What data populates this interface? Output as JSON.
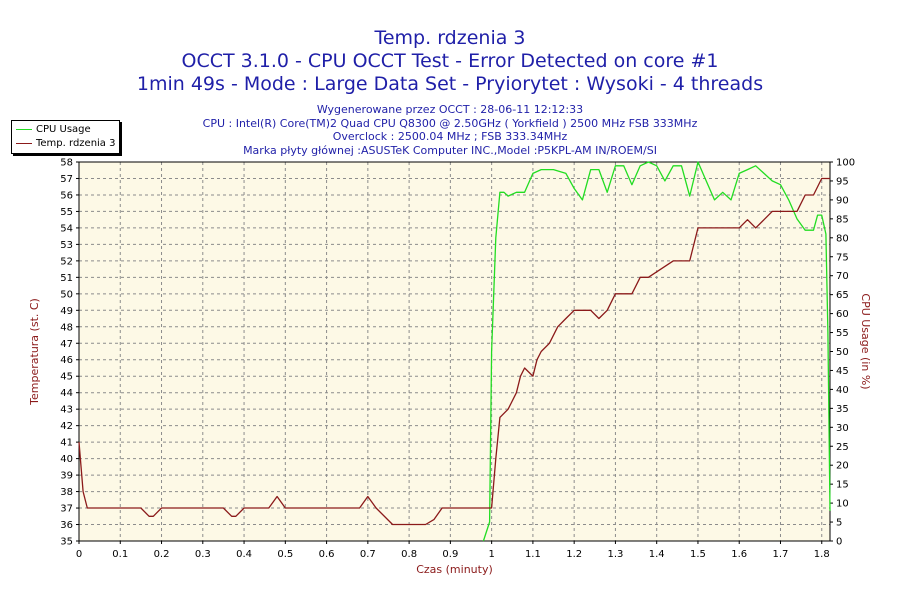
{
  "header": {
    "title1": "Temp. rdzenia 3",
    "title2": "OCCT 3.1.0 - CPU OCCT Test - Error Detected on core #1",
    "title3": "1min 49s - Mode : Large Data Set - Pryiorytet : Wysoki - 4 threads",
    "info": [
      "Wygenerowane przez OCCT : 28-06-11 12:12:33",
      "CPU : Intel(R) Core(TM)2 Quad CPU Q8300 @ 2.50GHz ( Yorkfield ) 2500 MHz FSB 333MHz",
      "Overclock : 2500.04 MHz ; FSB 333.34MHz",
      "Marka płyty głównej :ASUSTeK Computer INC.,Model :P5KPL-AM IN/ROEM/SI"
    ]
  },
  "colors": {
    "title": "#1f1fa8",
    "temp": "#8b1a1a",
    "cpu": "#22dd22",
    "plot_bg": "#fdf9e6",
    "grid": "#8c8c8c"
  },
  "chart_data": {
    "type": "line",
    "xlabel": "Czas (minuty)",
    "ylabel_left": "Temperatura (st. C)",
    "ylabel_right": "CPU Usage (in %)",
    "xlim": [
      0,
      1.82
    ],
    "ylim_left": [
      35,
      58
    ],
    "ylim_right": [
      0,
      100
    ],
    "x_ticks": [
      0,
      0.1,
      0.2,
      0.3,
      0.4,
      0.5,
      0.6,
      0.7,
      0.8,
      0.9,
      1,
      1.1,
      1.2,
      1.3,
      1.4,
      1.5,
      1.6,
      1.7,
      1.8
    ],
    "y_ticks_left": [
      35,
      36,
      37,
      38,
      39,
      40,
      41,
      42,
      43,
      44,
      45,
      46,
      47,
      48,
      49,
      50,
      51,
      52,
      53,
      54,
      55,
      56,
      57,
      58
    ],
    "y_ticks_right": [
      0,
      5,
      10,
      15,
      20,
      25,
      30,
      35,
      40,
      45,
      50,
      55,
      60,
      65,
      70,
      75,
      80,
      85,
      90,
      95,
      100
    ],
    "grid": true,
    "legend_position": "top-left",
    "series": [
      {
        "name": "CPU Usage",
        "axis": "right",
        "x": [
          0.98,
          0.995,
          1.0,
          1.01,
          1.02,
          1.03,
          1.04,
          1.06,
          1.08,
          1.1,
          1.12,
          1.15,
          1.18,
          1.2,
          1.22,
          1.24,
          1.26,
          1.28,
          1.3,
          1.32,
          1.34,
          1.36,
          1.38,
          1.4,
          1.42,
          1.44,
          1.46,
          1.48,
          1.5,
          1.52,
          1.54,
          1.56,
          1.58,
          1.6,
          1.62,
          1.64,
          1.66,
          1.68,
          1.7,
          1.72,
          1.74,
          1.76,
          1.78,
          1.79,
          1.8,
          1.81,
          1.815,
          1.82
        ],
        "y": [
          0,
          5,
          50,
          80,
          92,
          92,
          91,
          92,
          92,
          97,
          98,
          98,
          97,
          93,
          90,
          98,
          98,
          92,
          99,
          99,
          94,
          99,
          100,
          99,
          95,
          99,
          99,
          91,
          100,
          95,
          90,
          92,
          90,
          97,
          98,
          99,
          97,
          95,
          94,
          90,
          85,
          82,
          82,
          86,
          86,
          81,
          55,
          8
        ]
      },
      {
        "name": "Temp. rdzenia 3",
        "axis": "left",
        "x": [
          0,
          0.01,
          0.02,
          0.03,
          0.15,
          0.17,
          0.18,
          0.2,
          0.35,
          0.37,
          0.38,
          0.4,
          0.46,
          0.48,
          0.5,
          0.68,
          0.7,
          0.72,
          0.76,
          0.78,
          0.84,
          0.86,
          0.88,
          0.98,
          1.0,
          1.01,
          1.02,
          1.04,
          1.06,
          1.07,
          1.08,
          1.1,
          1.11,
          1.12,
          1.14,
          1.16,
          1.18,
          1.2,
          1.22,
          1.24,
          1.26,
          1.28,
          1.3,
          1.34,
          1.36,
          1.38,
          1.44,
          1.48,
          1.5,
          1.6,
          1.62,
          1.64,
          1.66,
          1.68,
          1.7,
          1.74,
          1.76,
          1.78,
          1.8,
          1.82
        ],
        "y": [
          41,
          38,
          37,
          37,
          37,
          36.5,
          36.5,
          37,
          37,
          36.5,
          36.5,
          37,
          37,
          37.7,
          37,
          37,
          37.7,
          37,
          36,
          36,
          36,
          36.3,
          37,
          37,
          37,
          40,
          42.5,
          43,
          44,
          45,
          45.5,
          45,
          46,
          46.5,
          47,
          48,
          48.5,
          49,
          49,
          49,
          48.5,
          49,
          50,
          50,
          51,
          51,
          52,
          52,
          54,
          54,
          54.5,
          54,
          54.5,
          55,
          55,
          55,
          56,
          56,
          57,
          57
        ]
      }
    ]
  }
}
